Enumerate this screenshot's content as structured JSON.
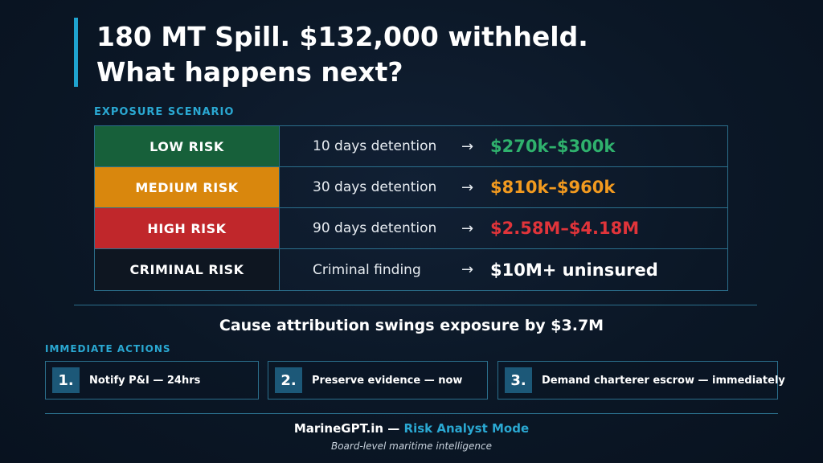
{
  "title": {
    "line1": "180 MT Spill. $132,000 withheld.",
    "line2": "What happens next?"
  },
  "exposure": {
    "label": "EXPOSURE SCENARIO",
    "rows": [
      {
        "risk": "LOW RISK",
        "detention": "10 days detention",
        "arrow": "→",
        "cost": "$270k–$300k"
      },
      {
        "risk": "MEDIUM RISK",
        "detention": "30 days detention",
        "arrow": "→",
        "cost": "$810k–$960k"
      },
      {
        "risk": "HIGH RISK",
        "detention": "90 days detention",
        "arrow": "→",
        "cost": "$2.58M–$4.18M"
      },
      {
        "risk": "CRIMINAL RISK",
        "detention": "Criminal finding",
        "arrow": "→",
        "cost": "$10M+ uninsured"
      }
    ]
  },
  "headline": "Cause attribution swings exposure by $3.7M",
  "actions": {
    "label": "IMMEDIATE ACTIONS",
    "items": [
      {
        "number": "1.",
        "text": "Notify P&I — 24hrs"
      },
      {
        "number": "2.",
        "text": "Preserve evidence — now"
      },
      {
        "number": "3.",
        "text": "Demand charterer escrow — immediately"
      }
    ]
  },
  "footer": {
    "brand": "MarineGPT.in",
    "separator": "—",
    "mode": "Risk Analyst Mode",
    "tagline": "Board-level maritime intelligence"
  },
  "colors": {
    "accent": "#1fa3cf",
    "low": "#17603a",
    "medium": "#d9870d",
    "high": "#c0272b",
    "criminal": "#0e1621"
  }
}
